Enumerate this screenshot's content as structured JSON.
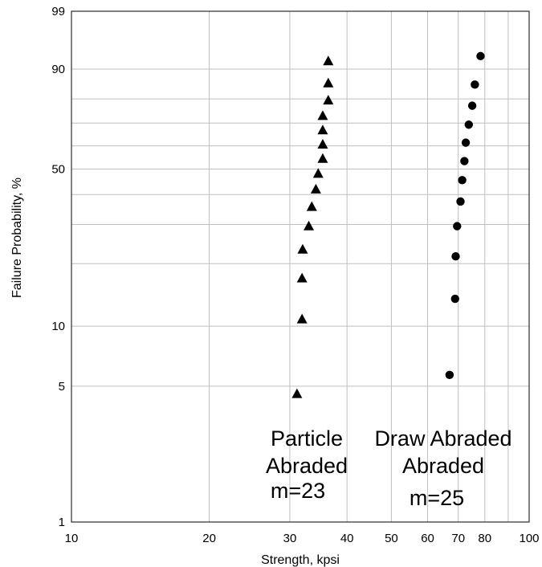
{
  "chart_data": {
    "type": "scatter",
    "xlabel": "Strength, kpsi",
    "ylabel": "Failure Probability, %",
    "x_scale": "log",
    "y_scale": "weibull-probability",
    "xlim": [
      10,
      100
    ],
    "ylim": [
      1,
      99
    ],
    "grid": true,
    "x_ticks": [
      10,
      20,
      30,
      40,
      50,
      60,
      70,
      80,
      100
    ],
    "x_tick_labels": [
      "10",
      "20",
      "30",
      "40",
      "50",
      "60",
      "70",
      "80",
      "100"
    ],
    "y_ticks": [
      1,
      5,
      10,
      50,
      90,
      99
    ],
    "y_tick_labels": [
      "1",
      "5",
      "10",
      "50",
      "90",
      "99"
    ],
    "y_gridlines": [
      1,
      5,
      10,
      20,
      30,
      40,
      50,
      60,
      70,
      80,
      90,
      99
    ],
    "series": [
      {
        "marker": "triangle",
        "color": "#000000",
        "points": [
          {
            "x": 31.1,
            "y": 4.6
          },
          {
            "x": 31.9,
            "y": 10.9
          },
          {
            "x": 31.9,
            "y": 17.2
          },
          {
            "x": 32.0,
            "y": 23.4
          },
          {
            "x": 33.0,
            "y": 29.7
          },
          {
            "x": 33.5,
            "y": 35.9
          },
          {
            "x": 34.2,
            "y": 42.2
          },
          {
            "x": 34.6,
            "y": 48.4
          },
          {
            "x": 35.4,
            "y": 54.7
          },
          {
            "x": 35.4,
            "y": 60.9
          },
          {
            "x": 35.4,
            "y": 67.2
          },
          {
            "x": 35.4,
            "y": 73.4
          },
          {
            "x": 36.4,
            "y": 79.7
          },
          {
            "x": 36.4,
            "y": 85.9
          },
          {
            "x": 36.4,
            "y": 92.2
          }
        ]
      },
      {
        "marker": "circle",
        "color": "#000000",
        "points": [
          {
            "x": 67.0,
            "y": 5.7
          },
          {
            "x": 68.9,
            "y": 13.6
          },
          {
            "x": 69.1,
            "y": 21.6
          },
          {
            "x": 69.6,
            "y": 29.5
          },
          {
            "x": 70.8,
            "y": 37.5
          },
          {
            "x": 71.4,
            "y": 45.5
          },
          {
            "x": 72.2,
            "y": 53.4
          },
          {
            "x": 72.7,
            "y": 61.4
          },
          {
            "x": 73.8,
            "y": 69.3
          },
          {
            "x": 75.1,
            "y": 77.3
          },
          {
            "x": 76.1,
            "y": 85.2
          },
          {
            "x": 78.3,
            "y": 93.2
          }
        ]
      }
    ],
    "annotations": {
      "left_line1": "Particle",
      "left_line2": "Abraded",
      "left_line3": "m=23",
      "right_line1": "Draw Abraded",
      "right_line2": "Abraded",
      "right_line3": "m=25"
    },
    "colors": {
      "grid": "#bfbfbf",
      "axis": "#000000",
      "background": "#ffffff"
    }
  }
}
